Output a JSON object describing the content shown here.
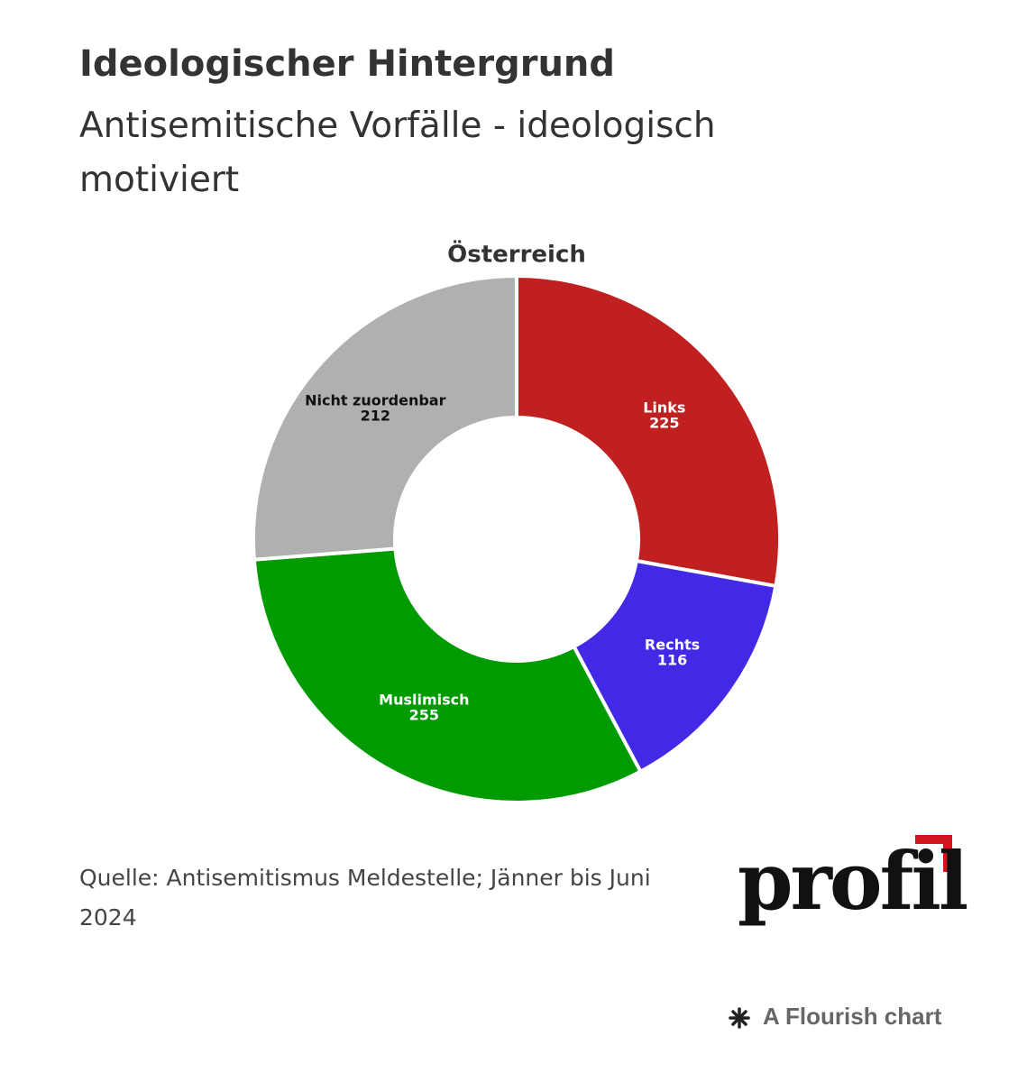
{
  "chart_data": {
    "type": "donut",
    "title": "Ideologischer Hintergrund",
    "subtitle": "Antisemitische Vorfälle - ideologisch motiviert",
    "chart_title": "Österreich",
    "categories": [
      "Links",
      "Rechts",
      "Muslimisch",
      "Nicht zuordenbar"
    ],
    "values": [
      225,
      116,
      255,
      212
    ],
    "colors": [
      "#c0201f",
      "#4229e6",
      "#009b00",
      "#b0b0b0"
    ],
    "source": "Quelle: Antisemitismus Meldestelle; Jänner bis Juni 2024",
    "logo": "profil",
    "footer": "A Flourish chart"
  }
}
